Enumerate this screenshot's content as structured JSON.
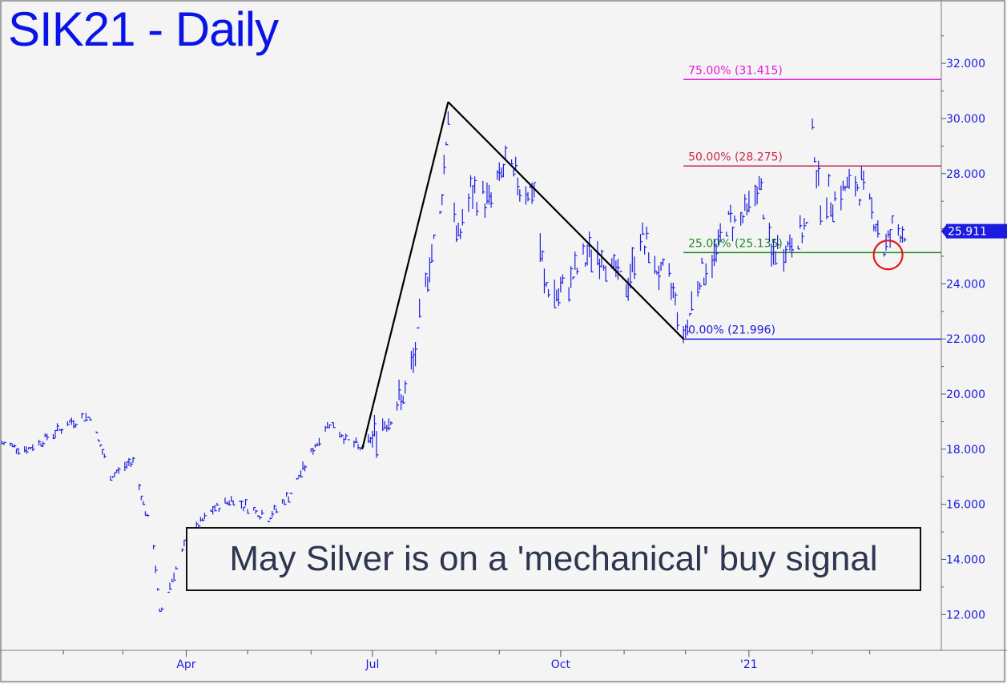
{
  "chart_data": {
    "type": "line",
    "title": "SIK21 - Daily",
    "annotation": "May Silver is on a 'mechanical' buy signal",
    "ylim": [
      10.7,
      34.3
    ],
    "yticks": [
      "12.000",
      "14.000",
      "16.000",
      "18.000",
      "20.000",
      "22.000",
      "24.000",
      "26.000",
      "28.000",
      "30.000",
      "32.000"
    ],
    "xtick_labels": [
      "Apr",
      "Jul",
      "Oct",
      "'21"
    ],
    "last_price": "25.911",
    "last_price_value": 25.911,
    "fib_levels": [
      {
        "label": "75.00% (31.415)",
        "value": 31.415,
        "color": "#e81ad8"
      },
      {
        "label": "50.00% (28.275)",
        "value": 28.275,
        "color": "#c8284a"
      },
      {
        "label": "25.00% (25.135)",
        "value": 25.135,
        "color": "#1a8a1a"
      },
      {
        "label": "0.00% (21.996)",
        "value": 21.996,
        "color": "#1c1ce0"
      }
    ],
    "pivots": [
      {
        "date": "2020-06-26",
        "price": 18.0
      },
      {
        "date": "2020-08-07",
        "price": 30.6
      },
      {
        "date": "2020-11-30",
        "price": 22.0
      }
    ],
    "price_path": [
      [
        "2020-01-02",
        18.2
      ],
      [
        "2020-01-15",
        18.0
      ],
      [
        "2020-02-05",
        19.0
      ],
      [
        "2020-02-14",
        19.2
      ],
      [
        "2020-02-24",
        17.0
      ],
      [
        "2020-03-06",
        17.6
      ],
      [
        "2020-03-16",
        14.5
      ],
      [
        "2020-03-19",
        12.0
      ],
      [
        "2020-03-26",
        13.5
      ],
      [
        "2020-04-02",
        14.8
      ],
      [
        "2020-04-14",
        15.8
      ],
      [
        "2020-04-24",
        16.2
      ],
      [
        "2020-05-11",
        15.5
      ],
      [
        "2020-05-22",
        16.4
      ],
      [
        "2020-06-02",
        18.0
      ],
      [
        "2020-06-10",
        19.0
      ],
      [
        "2020-06-19",
        18.3
      ],
      [
        "2020-06-26",
        18.0
      ],
      [
        "2020-07-06",
        18.9
      ],
      [
        "2020-07-17",
        20.0
      ],
      [
        "2020-07-22",
        21.5
      ],
      [
        "2020-07-24",
        22.5
      ],
      [
        "2020-07-28",
        24.5
      ],
      [
        "2020-08-03",
        26.5
      ],
      [
        "2020-08-07",
        30.2
      ],
      [
        "2020-08-11",
        25.5
      ],
      [
        "2020-08-18",
        27.3
      ],
      [
        "2020-08-27",
        27.0
      ],
      [
        "2020-09-04",
        28.3
      ],
      [
        "2020-09-11",
        27.6
      ],
      [
        "2020-09-18",
        27.3
      ],
      [
        "2020-09-23",
        24.0
      ],
      [
        "2020-09-30",
        23.5
      ],
      [
        "2020-10-09",
        24.5
      ],
      [
        "2020-10-16",
        25.2
      ],
      [
        "2020-10-23",
        24.9
      ],
      [
        "2020-11-02",
        23.8
      ],
      [
        "2020-11-09",
        25.8
      ],
      [
        "2020-11-16",
        24.6
      ],
      [
        "2020-11-25",
        23.8
      ],
      [
        "2020-11-30",
        22.0
      ],
      [
        "2020-12-07",
        24.2
      ],
      [
        "2020-12-14",
        24.8
      ],
      [
        "2020-12-21",
        26.2
      ],
      [
        "2020-12-30",
        26.5
      ],
      [
        "2021-01-06",
        27.6
      ],
      [
        "2021-01-12",
        25.0
      ],
      [
        "2021-01-22",
        25.5
      ],
      [
        "2021-01-29",
        26.0
      ],
      [
        "2021-02-01",
        29.5
      ],
      [
        "2021-02-05",
        27.0
      ],
      [
        "2021-02-12",
        27.2
      ],
      [
        "2021-02-19",
        27.5
      ],
      [
        "2021-02-26",
        27.5
      ],
      [
        "2021-03-03",
        26.5
      ],
      [
        "2021-03-08",
        25.2
      ],
      [
        "2021-03-12",
        26.0
      ],
      [
        "2021-03-18",
        25.911
      ]
    ],
    "x_start": "2020-01-01",
    "x_end": "2021-04-05",
    "x_ticks": [
      "2020-04-01",
      "2020-07-01",
      "2020-10-01",
      "2021-01-01"
    ],
    "minor_ticks": [
      "2020-02-01",
      "2020-03-01",
      "2020-05-01",
      "2020-06-01",
      "2020-08-01",
      "2020-09-01",
      "2020-11-01",
      "2020-12-01",
      "2021-02-01",
      "2021-03-01"
    ],
    "signal_circle": {
      "date": "2021-03-10",
      "price": 25.05
    },
    "colors": {
      "price": "#1c1ce0",
      "axis": "#555555",
      "background": "#f5f5f5",
      "circle": "#e01818",
      "swing": "#000000",
      "label": "#1c1ce0"
    }
  }
}
